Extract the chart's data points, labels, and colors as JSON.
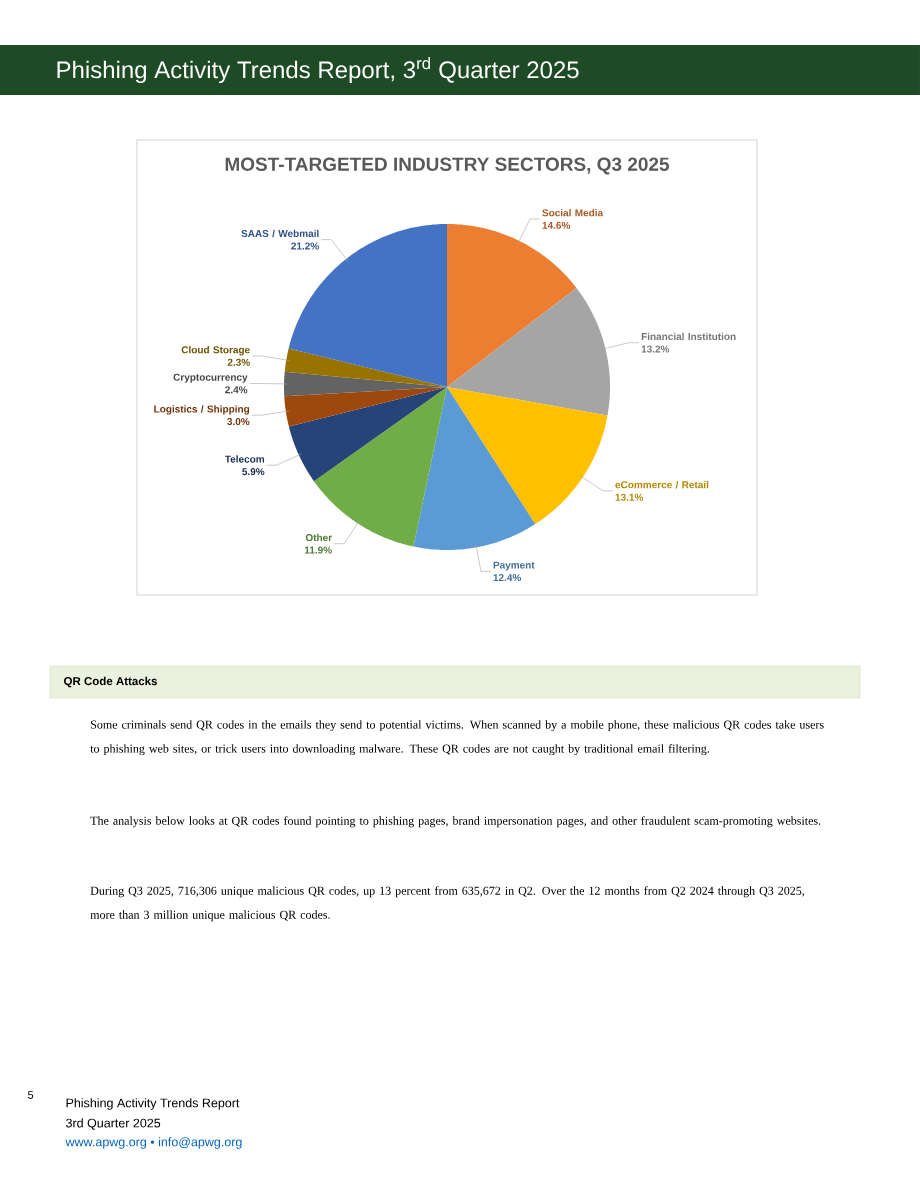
{
  "chart_data": {
    "type": "pie",
    "title": "MOST-TARGETED INDUSTRY SECTORS, Q3 2025",
    "categories": [
      "Social Media",
      "Financial Institution",
      "eCommerce / Retail",
      "Payment",
      "Other",
      "Telecom",
      "Logistics / Shipping",
      "Cryptocurrency",
      "Cloud Storage",
      "SAAS / Webmail"
    ],
    "values": [
      14.6,
      13.2,
      13.1,
      12.4,
      11.9,
      5.9,
      3.0,
      2.4,
      2.3,
      21.2
    ],
    "colors": [
      "#ed7d31",
      "#a5a5a5",
      "#ffc000",
      "#5b9bd5",
      "#70ad47",
      "#264478",
      "#9e480e",
      "#636363",
      "#997300",
      "#4472c4"
    ],
    "value_labels": [
      "14.6%",
      "13.2%",
      "13.1%",
      "12.4%",
      "11.9%",
      "5.9%",
      "3.0%",
      "2.4%",
      "2.3%",
      "21.2%"
    ],
    "annotations": [
      "Phishing Activity Trends Report, 3$^{rd}$ Quarter 2025",
      "QR Code Attacks",
      "Some criminals send QR codes in the emails they send to potential victims. When scanned by a mobile phone, these malicious QR codes take users to phishing web sites, or trick users into downloading malware. These QR codes are not caught by traditional email filtering.",
      "The analysis below looks at QR codes found pointing to phishing pages, brand impersonation pages, and other fraudulent scam-promoting websites.",
      "During Q3 2025, 716,306 unique malicious QR codes, up 13 percent from 635,672 in Q2. Over the 12 months from Q2 2024 through Q3 2025, more than 3 million unique malicious QR codes.",
      "5",
      "Phishing Activity Trends Report",
      "3rd Quarter 2025",
      "www.apwg.org • info@apwg.org"
    ]
  }
}
